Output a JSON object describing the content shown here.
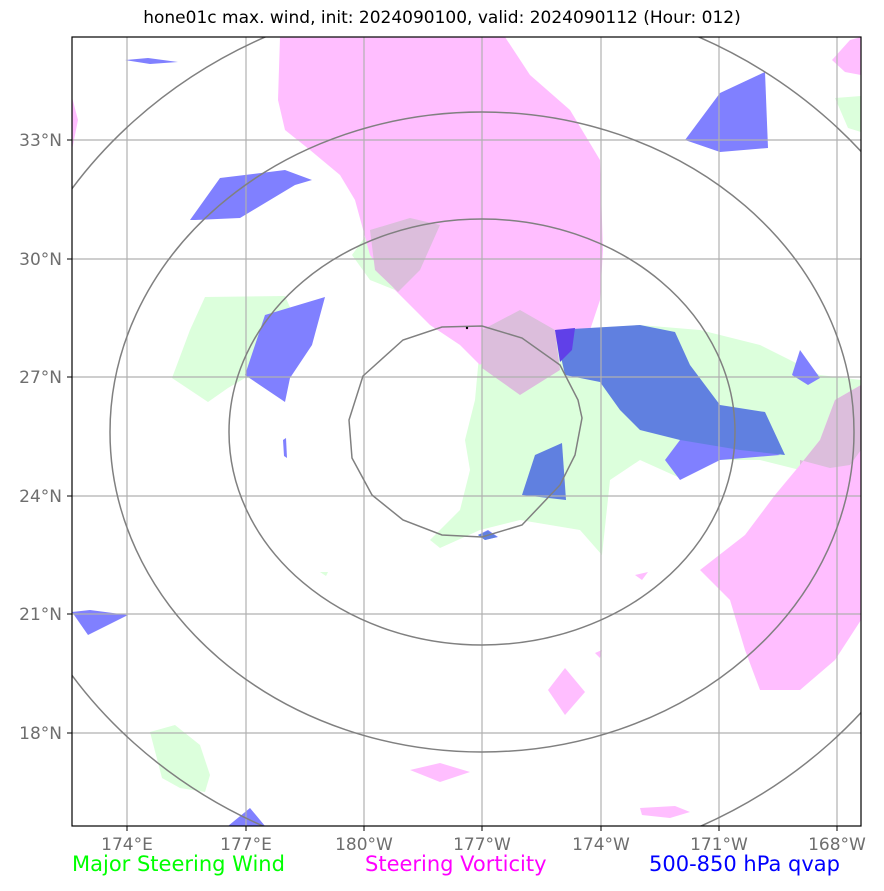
{
  "title": "hone01c max. wind, init: 2024090100, valid: 2024090112 (Hour: 012)",
  "lat_labels": [
    "33°N",
    "30°N",
    "27°N",
    "24°N",
    "21°N",
    "18°N"
  ],
  "lon_labels": [
    "174°E",
    "177°E",
    "180°W",
    "177°W",
    "174°W",
    "171°W",
    "168°W"
  ],
  "legend": {
    "green": {
      "label": "Major Steering Wind",
      "color": "#00ff00"
    },
    "magenta": {
      "label": "Steering Vorticity",
      "color": "#ff00ff"
    },
    "blue": {
      "label": "500-850 hPa qvap",
      "color": "#0000ff"
    }
  },
  "colors": {
    "green_fill": "#dcffdc",
    "magenta_fill": "#ffbeff",
    "blue_fill": "#8080ff",
    "overlap_green_magenta": "#dcbedc",
    "overlap_green_blue": "#6080e0",
    "overlap_all": "#6040e8",
    "grid": "#b0b0b0",
    "range_rings": "#808080"
  },
  "icons": {
    "storm_center": "center-dot-icon"
  }
}
